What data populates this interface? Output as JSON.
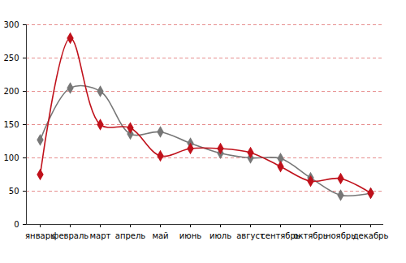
{
  "chart_data": {
    "type": "line",
    "categories": [
      "январь",
      "февраль",
      "март",
      "апрель",
      "май",
      "июнь",
      "июль",
      "август",
      "сентябрь",
      "октябрь",
      "ноябрь",
      "декабрь"
    ],
    "series": [
      {
        "color": "#c0111b",
        "marker": "diamond",
        "values": [
          75,
          280,
          150,
          145,
          103,
          114,
          114,
          108,
          87,
          65,
          69,
          47
        ]
      },
      {
        "color": "#777777",
        "marker": "diamond",
        "values": [
          127,
          205,
          200,
          136,
          139,
          122,
          107,
          100,
          99,
          70,
          44,
          47
        ]
      }
    ],
    "ylim": [
      0,
      300
    ],
    "yticks": [
      0,
      50,
      100,
      150,
      200,
      250,
      300
    ],
    "grid": true
  }
}
